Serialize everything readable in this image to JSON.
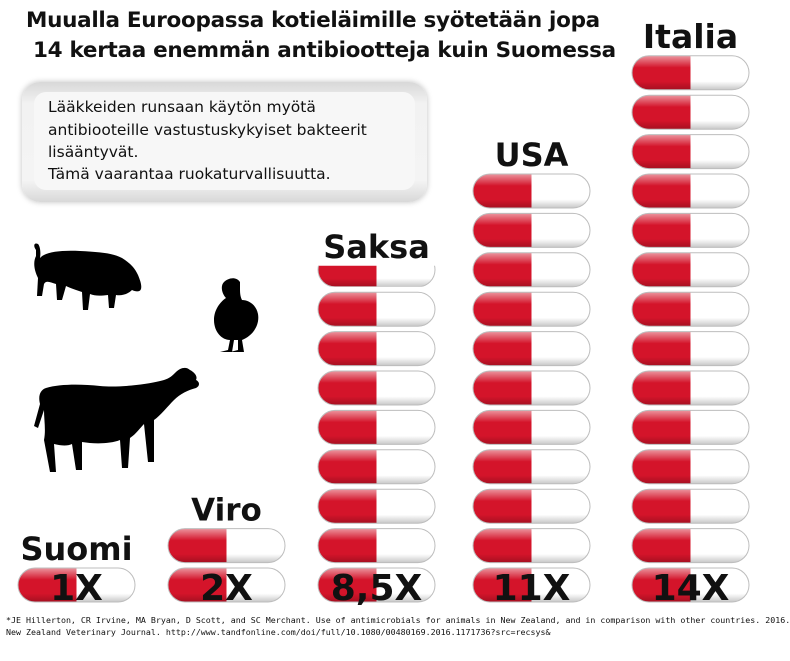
{
  "title": {
    "line1": "Muualla Euroopassa kotieläimille syötetään jopa",
    "line2": "14 kertaa enemmän antibiootteja kuin Suomessa"
  },
  "note": {
    "line1": "Lääkkeiden runsaan käytön myötä",
    "line2": "antibiooteille vastustuskykyiset bakteerit",
    "line3": "lisääntyvät.",
    "line4": "Tämä vaarantaa ruokaturvallisuutta."
  },
  "icons": [
    "pig-icon",
    "duck-icon",
    "cow-icon",
    "pill-icon"
  ],
  "colors": {
    "pill_red": "#d4142a",
    "pill_white": "#ffffff",
    "text": "#111111"
  },
  "chart_data": {
    "type": "bar",
    "unit_symbol": "pill",
    "categories": [
      "Suomi",
      "Viro",
      "Saksa",
      "USA",
      "Italia"
    ],
    "values": [
      1,
      2,
      8.5,
      11,
      14
    ],
    "value_labels": [
      "1X",
      "2X",
      "8,5X",
      "11X",
      "14X"
    ],
    "title": "Muualla Euroopassa kotieläimille syötetään jopa 14 kertaa enemmän antibiootteja kuin Suomessa",
    "xlabel": "",
    "ylabel": "",
    "grid": false,
    "legend": "none"
  },
  "footnote": {
    "line1": "*JE Hillerton, CR Irvine, MA Bryan, D Scott, and SC Merchant. Use of antimicrobials for animals in New Zealand, and in comparison with other countries. 2016.",
    "line2": "New Zealand Veterinary Journal.  http://www.tandfonline.com/doi/full/10.1080/00480169.2016.1171736?src=recsys&"
  }
}
